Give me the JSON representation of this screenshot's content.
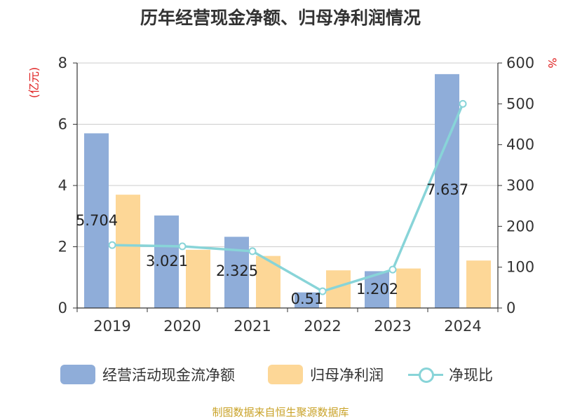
{
  "colors": {
    "bar_cashflow": "#8fadd9",
    "bar_profit": "#fdd797",
    "line_ratio": "#88d4d8",
    "unit_label": "#e02020",
    "source": "#c9a227"
  },
  "chart_data": {
    "type": "bar",
    "title": "历年经营现金净额、归母净利润情况",
    "left_unit": "(亿元)",
    "right_unit": "%",
    "categories": [
      "2019",
      "2020",
      "2021",
      "2022",
      "2023",
      "2024"
    ],
    "series": [
      {
        "name": "经营活动现金流净额",
        "type": "bar",
        "axis": "left",
        "values": [
          5.704,
          3.021,
          2.325,
          0.51,
          1.202,
          7.637
        ]
      },
      {
        "name": "归母净利润",
        "type": "bar",
        "axis": "left",
        "values": [
          3.7,
          1.9,
          1.7,
          1.23,
          1.29,
          1.55
        ]
      },
      {
        "name": "净现比",
        "type": "line",
        "axis": "right",
        "values": [
          154,
          151,
          139,
          41,
          94,
          500
        ]
      }
    ],
    "bar_labels": [
      "5.704",
      "3.021",
      "2.325",
      "0.51",
      "1.202",
      "7.637"
    ],
    "ylim_left": [
      0,
      8
    ],
    "yticks_left": [
      "0",
      "2",
      "4",
      "6",
      "8"
    ],
    "ylim_right": [
      0,
      600
    ],
    "yticks_right": [
      "0",
      "100",
      "200",
      "300",
      "400",
      "500",
      "600"
    ],
    "grid": true,
    "legend_position": "bottom"
  },
  "legend": {
    "item1": "经营活动现金流净额",
    "item2": "归母净利润",
    "item3": "净现比"
  },
  "source": "制图数据来自恒生聚源数据库"
}
